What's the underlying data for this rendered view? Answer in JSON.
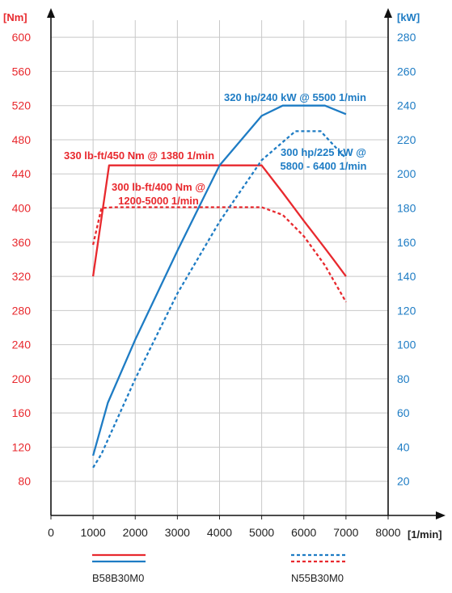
{
  "chart_data": {
    "type": "line",
    "title": "",
    "xlabel": "[1/min]",
    "ylabel_left": "[Nm]",
    "ylabel_right": "[kW]",
    "xlim": [
      0,
      8000
    ],
    "ylim_left": [
      40,
      620
    ],
    "ylim_right": [
      0,
      290
    ],
    "x_ticks": [
      0,
      1000,
      2000,
      3000,
      4000,
      5000,
      6000,
      7000,
      8000
    ],
    "y_left_ticks": [
      80,
      120,
      160,
      200,
      240,
      280,
      320,
      360,
      400,
      440,
      480,
      520,
      560,
      600
    ],
    "y_right_ticks": [
      20,
      40,
      60,
      80,
      100,
      120,
      140,
      160,
      180,
      200,
      220,
      240,
      260,
      280
    ],
    "grid": true,
    "series": [
      {
        "name": "B58B30M0",
        "quantity": "torque",
        "axis": "left",
        "color": "#e8292e",
        "style": "solid",
        "points": [
          [
            1000,
            320
          ],
          [
            1380,
            450
          ],
          [
            5000,
            450
          ],
          [
            5500,
            418
          ],
          [
            6000,
            385
          ],
          [
            6500,
            353
          ],
          [
            6700,
            340
          ],
          [
            7000,
            320
          ]
        ]
      },
      {
        "name": "N55B30M0",
        "quantity": "torque",
        "axis": "left",
        "color": "#e8292e",
        "style": "dashed",
        "points": [
          [
            1000,
            357
          ],
          [
            1200,
            400
          ],
          [
            1500,
            401
          ],
          [
            5000,
            401
          ],
          [
            5500,
            392
          ],
          [
            6000,
            367
          ],
          [
            6500,
            333
          ],
          [
            7000,
            290
          ]
        ]
      },
      {
        "name": "B58B30M0",
        "quantity": "power",
        "axis": "right",
        "color": "#1e7cc4",
        "style": "solid",
        "points": [
          [
            1000,
            35
          ],
          [
            1350,
            66
          ],
          [
            2000,
            103
          ],
          [
            3000,
            155
          ],
          [
            4000,
            205
          ],
          [
            5000,
            234
          ],
          [
            5500,
            240
          ],
          [
            6500,
            240
          ],
          [
            7000,
            235
          ]
        ]
      },
      {
        "name": "N55B30M0",
        "quantity": "power",
        "axis": "right",
        "color": "#1e7cc4",
        "style": "dashed",
        "points": [
          [
            1000,
            28
          ],
          [
            1200,
            36
          ],
          [
            2000,
            80
          ],
          [
            3000,
            130
          ],
          [
            4000,
            172
          ],
          [
            5000,
            208
          ],
          [
            5800,
            225
          ],
          [
            6400,
            225
          ],
          [
            7000,
            209
          ]
        ]
      }
    ],
    "annotations": [
      {
        "lines": [
          "330 lb-ft/450 Nm @ 1380 1/min"
        ],
        "color": "#e8292e"
      },
      {
        "lines": [
          "300 lb-ft/400 Nm @",
          "1200-5000 1/min"
        ],
        "color": "#e8292e"
      },
      {
        "lines": [
          "320 hp/240 kW @ 5500 1/min"
        ],
        "color": "#1e7cc4"
      },
      {
        "lines": [
          "300 hp/225 kW @",
          "5800 - 6400 1/min"
        ],
        "color": "#1e7cc4"
      }
    ],
    "legend": {
      "position": "bottom",
      "entries": [
        {
          "label": "B58B30M0",
          "style": "solid"
        },
        {
          "label": "N55B30M0",
          "style": "dashed"
        }
      ]
    }
  }
}
